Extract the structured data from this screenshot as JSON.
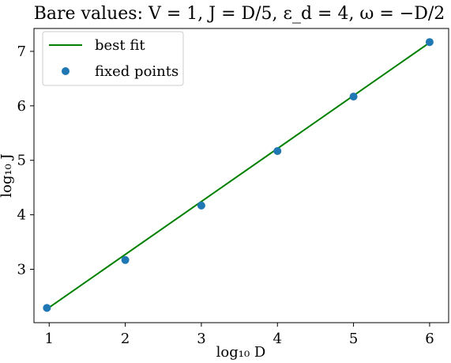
{
  "chart_data": {
    "type": "scatter",
    "title": "Bare values: V = 1, J = D/5, ε_d = 4, ω = −D/2",
    "xlabel": "log₁₀ D",
    "ylabel": "log₁₀ J",
    "xlim": [
      0.8,
      6.25
    ],
    "ylim": [
      2.02,
      7.42
    ],
    "xticks": [
      1,
      2,
      3,
      4,
      5,
      6
    ],
    "yticks": [
      3,
      4,
      5,
      6,
      7
    ],
    "grid": false,
    "legend_position": "top-left",
    "series": [
      {
        "name": "best fit",
        "kind": "line",
        "color": "#008000",
        "x": [
          0.97,
          6.0
        ],
        "y": [
          2.27,
          7.16
        ]
      },
      {
        "name": "fixed points",
        "kind": "scatter",
        "color": "#1f77b4",
        "x": [
          0.97,
          2.0,
          3.0,
          4.0,
          5.0,
          6.0
        ],
        "y": [
          2.29,
          3.17,
          4.17,
          5.17,
          6.17,
          7.17
        ]
      }
    ]
  }
}
